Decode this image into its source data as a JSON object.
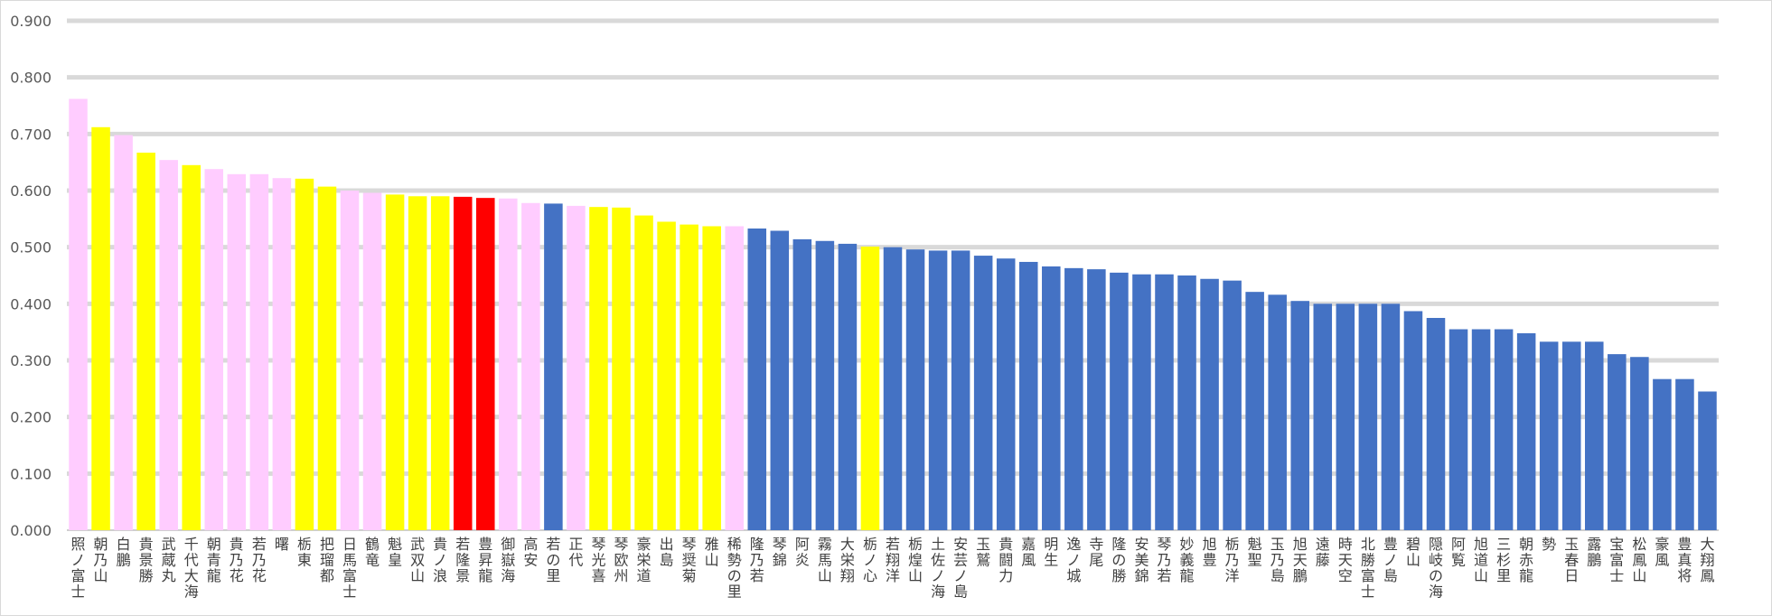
{
  "chart_data": {
    "type": "bar",
    "title": "",
    "xlabel": "",
    "ylabel": "",
    "ylim": [
      0,
      0.9
    ],
    "yticks": [
      "0.000",
      "0.100",
      "0.200",
      "0.300",
      "0.400",
      "0.500",
      "0.600",
      "0.700",
      "0.800",
      "0.900"
    ],
    "grid": true,
    "legend": "none",
    "colors": {
      "pink": "#ffccff",
      "yellow": "#ffff00",
      "red": "#ff0000",
      "blue": "#4472c4",
      "grid": "#d9d9d9",
      "axis": "#bfbfbf"
    },
    "categories": [
      "照ノ富士",
      "朝乃山",
      "白鵬",
      "貴景勝",
      "武蔵丸",
      "千代大海",
      "朝青龍",
      "貴乃花",
      "若乃花",
      "曙",
      "栃東",
      "把瑠都",
      "日馬富士",
      "鶴竜",
      "魁皇",
      "武双山",
      "貴ノ浪",
      "若隆景",
      "豊昇龍",
      "御嶽海",
      "高安",
      "若の里",
      "正代",
      "琴光喜",
      "琴欧州",
      "豪栄道",
      "出島",
      "琴奨菊",
      "雅山",
      "稀勢の里",
      "隆乃若",
      "琴錦",
      "阿炎",
      "霧馬山",
      "大栄翔",
      "栃ノ心",
      "若翔洋",
      "栃煌山",
      "土佐ノ海",
      "安芸ノ島",
      "玉鷲",
      "貴闘力",
      "嘉風",
      "明生",
      "逸ノ城",
      "寺尾",
      "隆の勝",
      "安美錦",
      "琴乃若",
      "妙義龍",
      "旭豊",
      "栃乃洋",
      "魁聖",
      "玉乃島",
      "旭天鵬",
      "遠藤",
      "時天空",
      "北勝富士",
      "豊ノ島",
      "碧山",
      "隠岐の海",
      "阿覧",
      "旭道山",
      "三杉里",
      "朝赤龍",
      "勢",
      "玉春日",
      "露鵬",
      "宝富士",
      "松鳳山",
      "豪風",
      "豊真将",
      "大翔鳳"
    ],
    "values": [
      0.762,
      0.712,
      0.698,
      0.667,
      0.654,
      0.645,
      0.638,
      0.629,
      0.629,
      0.622,
      0.621,
      0.607,
      0.6,
      0.596,
      0.593,
      0.59,
      0.59,
      0.589,
      0.587,
      0.586,
      0.578,
      0.577,
      0.573,
      0.571,
      0.57,
      0.556,
      0.545,
      0.54,
      0.537,
      0.537,
      0.533,
      0.529,
      0.514,
      0.511,
      0.506,
      0.501,
      0.5,
      0.496,
      0.494,
      0.494,
      0.485,
      0.48,
      0.474,
      0.466,
      0.463,
      0.461,
      0.455,
      0.452,
      0.452,
      0.45,
      0.444,
      0.441,
      0.421,
      0.416,
      0.405,
      0.4,
      0.4,
      0.4,
      0.4,
      0.387,
      0.375,
      0.355,
      0.355,
      0.355,
      0.348,
      0.333,
      0.333,
      0.333,
      0.311,
      0.306,
      0.267,
      0.267,
      0.245
    ],
    "bar_colors": [
      "pink",
      "yellow",
      "pink",
      "yellow",
      "pink",
      "yellow",
      "pink",
      "pink",
      "pink",
      "pink",
      "yellow",
      "yellow",
      "pink",
      "pink",
      "yellow",
      "yellow",
      "yellow",
      "red",
      "red",
      "pink",
      "pink",
      "blue",
      "pink",
      "yellow",
      "yellow",
      "yellow",
      "yellow",
      "yellow",
      "yellow",
      "pink",
      "blue",
      "blue",
      "blue",
      "blue",
      "blue",
      "yellow",
      "blue",
      "blue",
      "blue",
      "blue",
      "blue",
      "blue",
      "blue",
      "blue",
      "blue",
      "blue",
      "blue",
      "blue",
      "blue",
      "blue",
      "blue",
      "blue",
      "blue",
      "blue",
      "blue",
      "blue",
      "blue",
      "blue",
      "blue",
      "blue",
      "blue",
      "blue",
      "blue",
      "blue",
      "blue",
      "blue",
      "blue",
      "blue",
      "blue",
      "blue",
      "blue",
      "blue",
      "blue"
    ]
  }
}
